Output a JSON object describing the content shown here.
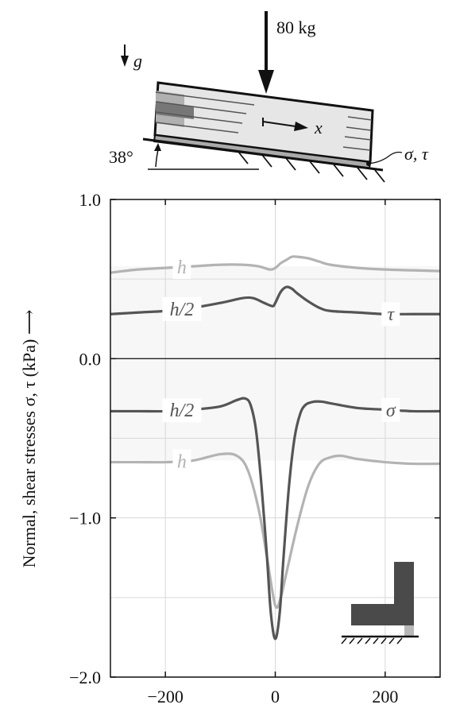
{
  "sketch": {
    "load_label": "80 kg",
    "gravity_label": "g",
    "angle_label": "38°",
    "axis_label": "x",
    "stress_label": "σ, τ"
  },
  "chart_data": {
    "type": "line",
    "title": "",
    "xlabel": "",
    "ylabel": "Normal, shear stresses σ, τ (kPa)  ⟶",
    "xlim": [
      -300,
      300
    ],
    "ylim": [
      -2.0,
      1.0
    ],
    "x_ticks": [
      -200,
      0,
      200
    ],
    "x_tick_labels": [
      "−200",
      "0",
      "200"
    ],
    "y_ticks": [
      -2.0,
      -1.0,
      0.0,
      1.0
    ],
    "y_tick_labels": [
      "−2.0",
      "−1.0",
      "0.0",
      "1.0"
    ],
    "grid": true,
    "colors": {
      "h": "#b3b3b3",
      "h2": "#555555",
      "zero": "#222222",
      "band": "#f7f7f7"
    },
    "series": [
      {
        "key": "tau_h",
        "label": "h",
        "group": "τ",
        "x": [
          -300,
          -250,
          -200,
          -150,
          -100,
          -60,
          -30,
          -10,
          0,
          10,
          20,
          30,
          40,
          60,
          80,
          100,
          150,
          200,
          250,
          300
        ],
        "y": [
          0.54,
          0.56,
          0.57,
          0.58,
          0.59,
          0.59,
          0.58,
          0.56,
          0.57,
          0.6,
          0.62,
          0.64,
          0.64,
          0.63,
          0.61,
          0.59,
          0.57,
          0.56,
          0.555,
          0.55
        ]
      },
      {
        "key": "tau_h2",
        "label": "h/2",
        "group": "τ",
        "x": [
          -300,
          -250,
          -200,
          -150,
          -100,
          -60,
          -40,
          -20,
          -5,
          0,
          10,
          20,
          30,
          40,
          60,
          80,
          100,
          150,
          200,
          250,
          300
        ],
        "y": [
          0.28,
          0.29,
          0.3,
          0.32,
          0.35,
          0.38,
          0.38,
          0.35,
          0.33,
          0.35,
          0.42,
          0.45,
          0.44,
          0.41,
          0.36,
          0.32,
          0.3,
          0.29,
          0.28,
          0.28,
          0.28
        ]
      },
      {
        "key": "sigma_h2",
        "label": "h/2",
        "group": "σ",
        "x": [
          -300,
          -250,
          -200,
          -150,
          -100,
          -70,
          -55,
          -45,
          -35,
          -25,
          -15,
          -8,
          0,
          8,
          15,
          25,
          35,
          45,
          55,
          70,
          85,
          100,
          150,
          200,
          250,
          300
        ],
        "y": [
          -0.33,
          -0.33,
          -0.33,
          -0.32,
          -0.3,
          -0.26,
          -0.25,
          -0.29,
          -0.45,
          -0.8,
          -1.25,
          -1.6,
          -1.76,
          -1.6,
          -1.25,
          -0.8,
          -0.5,
          -0.35,
          -0.29,
          -0.27,
          -0.27,
          -0.28,
          -0.31,
          -0.32,
          -0.33,
          -0.33
        ]
      },
      {
        "key": "sigma_h",
        "label": "h",
        "group": "σ",
        "x": [
          -300,
          -250,
          -200,
          -150,
          -100,
          -70,
          -50,
          -30,
          -15,
          0,
          10,
          20,
          40,
          60,
          80,
          100,
          120,
          150,
          200,
          250,
          300
        ],
        "y": [
          -0.65,
          -0.65,
          -0.65,
          -0.64,
          -0.6,
          -0.61,
          -0.7,
          -0.95,
          -1.25,
          -1.55,
          -1.5,
          -1.35,
          -1.05,
          -0.8,
          -0.66,
          -0.62,
          -0.61,
          -0.63,
          -0.65,
          -0.66,
          -0.66
        ]
      }
    ],
    "curve_labels": [
      {
        "series": "tau_h",
        "text": "h",
        "at_x": -170
      },
      {
        "series": "tau_h2",
        "text": "h/2",
        "at_x": -170
      },
      {
        "series": "tau_h2",
        "text": "τ",
        "at_x": 210
      },
      {
        "series": "sigma_h2",
        "text": "h/2",
        "at_x": -170
      },
      {
        "series": "sigma_h2",
        "text": "σ",
        "at_x": 210
      },
      {
        "series": "sigma_h",
        "text": "h",
        "at_x": -170
      }
    ]
  }
}
